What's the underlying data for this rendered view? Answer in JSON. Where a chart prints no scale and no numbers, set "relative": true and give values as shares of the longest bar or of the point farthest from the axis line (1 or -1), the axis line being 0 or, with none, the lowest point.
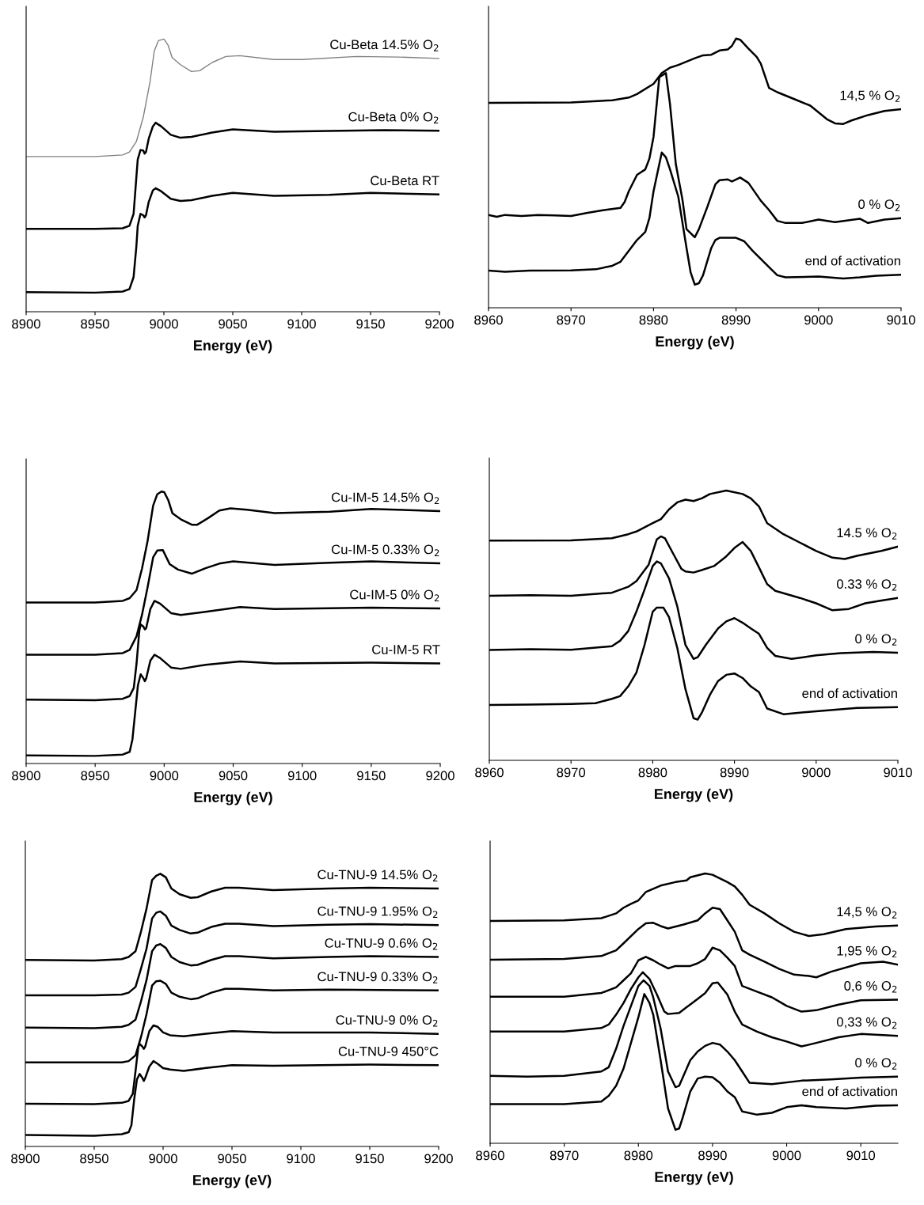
{
  "chart_data": [
    {
      "type": "line",
      "relative": true,
      "xlabel": "Energy (eV)",
      "xlim": [
        8900,
        9200
      ],
      "xticks": [
        8900,
        8950,
        9000,
        9050,
        9100,
        9150,
        9200
      ],
      "legend": false,
      "series": [
        {
          "name": "Cu-Beta 14.5% O$_{2}$",
          "color": "#808080",
          "x": [
            8900,
            8950,
            8970,
            8975,
            8980,
            8985,
            8990,
            8993,
            8996,
            9000,
            9003,
            9006,
            9012,
            9020,
            9026,
            9035,
            9045,
            9055,
            9080,
            9100,
            9140,
            9170,
            9200
          ],
          "values": [
            0.569,
            0.569,
            0.575,
            0.586,
            0.624,
            0.713,
            0.845,
            0.956,
            0.994,
            1.0,
            0.978,
            0.932,
            0.906,
            0.881,
            0.884,
            0.914,
            0.936,
            0.939,
            0.925,
            0.925,
            0.936,
            0.934,
            0.929
          ]
        },
        {
          "name": "Cu-Beta 0% O$_{2}$",
          "color": "#000000",
          "x": [
            8900,
            8950,
            8970,
            8975,
            8978,
            8980,
            8981,
            8983,
            8985,
            8986,
            8987,
            8989,
            8992,
            8994,
            8998,
            9005,
            9012,
            9020,
            9035,
            9050,
            9060,
            9080,
            9120,
            9160,
            9200
          ],
          "values": [
            0.304,
            0.304,
            0.306,
            0.315,
            0.359,
            0.492,
            0.558,
            0.593,
            0.591,
            0.58,
            0.586,
            0.635,
            0.68,
            0.693,
            0.68,
            0.649,
            0.638,
            0.641,
            0.657,
            0.669,
            0.666,
            0.66,
            0.663,
            0.666,
            0.664
          ]
        },
        {
          "name": "Cu-Beta RT",
          "color": "#000000",
          "x": [
            8900,
            8950,
            8970,
            8975,
            8978,
            8980,
            8981,
            8983,
            8985,
            8986,
            8987,
            8989,
            8992,
            8994,
            8998,
            9005,
            9012,
            9020,
            9035,
            9050,
            9080,
            9120,
            9150,
            9200
          ],
          "values": [
            0.072,
            0.07,
            0.074,
            0.083,
            0.127,
            0.238,
            0.315,
            0.359,
            0.354,
            0.346,
            0.354,
            0.403,
            0.445,
            0.453,
            0.442,
            0.414,
            0.406,
            0.409,
            0.425,
            0.436,
            0.425,
            0.429,
            0.436,
            0.43
          ]
        }
      ]
    },
    {
      "type": "line",
      "relative": true,
      "xlabel": "Energy (eV)",
      "xlim": [
        8960,
        9010
      ],
      "xticks": [
        8960,
        8970,
        8980,
        8990,
        9000,
        9010
      ],
      "legend": false,
      "series": [
        {
          "name": "14,5 % O$_{2}$",
          "color": "#000000",
          "x": [
            8960,
            8970,
            8975,
            8977,
            8978,
            8980,
            8981,
            8982,
            8983,
            8985,
            8986,
            8987,
            8988,
            8989,
            8989.5,
            8990,
            8990.5,
            8991.5,
            8992.5,
            8993,
            8994,
            8995,
            8997,
            8999,
            9000,
            9001,
            9002,
            9003,
            9004,
            9006,
            9008,
            9010
          ],
          "values": [
            0.761,
            0.763,
            0.771,
            0.781,
            0.794,
            0.832,
            0.872,
            0.892,
            0.902,
            0.927,
            0.938,
            0.94,
            0.956,
            0.96,
            0.973,
            1.0,
            0.996,
            0.963,
            0.932,
            0.907,
            0.817,
            0.801,
            0.776,
            0.751,
            0.726,
            0.701,
            0.685,
            0.683,
            0.696,
            0.716,
            0.731,
            0.738
          ]
        },
        {
          "name": "0 % O$_{2}$",
          "color": "#000000",
          "x": [
            8960,
            8961,
            8962,
            8964,
            8966,
            8968,
            8970,
            8972,
            8974,
            8976,
            8976.5,
            8977,
            8978,
            8979,
            8979.5,
            8980,
            8980.7,
            8981.5,
            8982,
            8982.7,
            8983.5,
            8984,
            8985,
            8985.5,
            8986.5,
            8987.5,
            8988,
            8989,
            8989.5,
            8990.5,
            8991.5,
            8993,
            8994,
            8995,
            8996,
            8998,
            9000,
            9002,
            9005,
            9006,
            9008,
            9010
          ],
          "values": [
            0.345,
            0.338,
            0.345,
            0.341,
            0.345,
            0.343,
            0.341,
            0.353,
            0.363,
            0.371,
            0.393,
            0.433,
            0.494,
            0.514,
            0.554,
            0.635,
            0.857,
            0.872,
            0.756,
            0.534,
            0.403,
            0.292,
            0.262,
            0.292,
            0.373,
            0.459,
            0.474,
            0.477,
            0.469,
            0.484,
            0.464,
            0.398,
            0.363,
            0.323,
            0.315,
            0.315,
            0.328,
            0.318,
            0.331,
            0.315,
            0.328,
            0.333
          ]
        },
        {
          "name": "end of activation",
          "color": "#000000",
          "x": [
            8960,
            8962,
            8965,
            8970,
            8973,
            8975,
            8976,
            8977,
            8978,
            8979,
            8979.5,
            8980,
            8981,
            8981.5,
            8982,
            8983,
            8984,
            8984.5,
            8985,
            8985.5,
            8986,
            8987,
            8987.5,
            8988,
            8990,
            8991,
            8992,
            8994,
            8995,
            8996,
            9000,
            9003,
            9005,
            9007,
            9010
          ],
          "values": [
            0.138,
            0.134,
            0.138,
            0.139,
            0.143,
            0.156,
            0.171,
            0.212,
            0.252,
            0.282,
            0.333,
            0.433,
            0.577,
            0.559,
            0.514,
            0.413,
            0.222,
            0.131,
            0.086,
            0.091,
            0.121,
            0.222,
            0.252,
            0.26,
            0.26,
            0.247,
            0.212,
            0.151,
            0.121,
            0.113,
            0.116,
            0.109,
            0.113,
            0.119,
            0.123
          ]
        }
      ]
    },
    {
      "type": "line",
      "relative": true,
      "xlabel": "Energy (eV)",
      "xlim": [
        8900,
        9200
      ],
      "xticks": [
        8900,
        8950,
        9000,
        9050,
        9100,
        9150,
        9200
      ],
      "legend": false,
      "series": [
        {
          "name": "Cu-IM-5 14.5% O$_{2}$",
          "color": "#000000",
          "x": [
            8900,
            8950,
            8970,
            8975,
            8980,
            8984,
            8988,
            8992,
            8995,
            8998,
            9000,
            9003,
            9006,
            9012,
            9020,
            9024,
            9032,
            9040,
            9048,
            9060,
            9080,
            9120,
            9150,
            9200
          ],
          "values": [
            0.592,
            0.592,
            0.598,
            0.608,
            0.638,
            0.718,
            0.818,
            0.948,
            0.99,
            1.0,
            0.998,
            0.968,
            0.92,
            0.898,
            0.878,
            0.878,
            0.903,
            0.93,
            0.938,
            0.933,
            0.921,
            0.926,
            0.936,
            0.928
          ]
        },
        {
          "name": "Cu-IM-5 0.33% O$_{2}$",
          "color": "#000000",
          "x": [
            8900,
            8950,
            8970,
            8975,
            8980,
            8984,
            8988,
            8992,
            8995,
            8999,
            9004,
            9010,
            9020,
            9030,
            9040,
            9050,
            9080,
            9120,
            9150,
            9200
          ],
          "values": [
            0.4,
            0.4,
            0.406,
            0.418,
            0.468,
            0.548,
            0.648,
            0.758,
            0.783,
            0.785,
            0.733,
            0.713,
            0.698,
            0.718,
            0.735,
            0.743,
            0.73,
            0.738,
            0.743,
            0.736
          ]
        },
        {
          "name": "Cu-IM-5 0% O$_{2}$",
          "color": "#000000",
          "x": [
            8900,
            8950,
            8970,
            8975,
            8978,
            8980,
            8982,
            8983,
            8985,
            8986,
            8987,
            8990,
            8993,
            8997,
            9005,
            9012,
            9030,
            9055,
            9080,
            9150,
            9200
          ],
          "values": [
            0.235,
            0.233,
            0.238,
            0.248,
            0.278,
            0.368,
            0.488,
            0.511,
            0.503,
            0.493,
            0.498,
            0.568,
            0.598,
            0.588,
            0.553,
            0.546,
            0.558,
            0.575,
            0.568,
            0.573,
            0.57
          ]
        },
        {
          "name": "Cu-IM-5 RT",
          "color": "#000000",
          "x": [
            8900,
            8950,
            8970,
            8975,
            8977,
            8979,
            8981,
            8983,
            8985,
            8986,
            8987,
            8990,
            8993,
            8997,
            9005,
            9012,
            9030,
            9055,
            9080,
            9150,
            9200
          ],
          "values": [
            0.03,
            0.028,
            0.033,
            0.043,
            0.088,
            0.188,
            0.288,
            0.328,
            0.313,
            0.303,
            0.313,
            0.378,
            0.4,
            0.388,
            0.353,
            0.348,
            0.363,
            0.375,
            0.368,
            0.371,
            0.368
          ]
        }
      ]
    },
    {
      "type": "line",
      "relative": true,
      "xlabel": "Energy (eV)",
      "xlim": [
        8960,
        9010
      ],
      "xticks": [
        8960,
        8970,
        8980,
        8990,
        9000,
        9010
      ],
      "legend": false,
      "series": [
        {
          "name": "14.5 % O$_{2}$",
          "color": "#000000",
          "x": [
            8960,
            8970,
            8975,
            8977,
            8978,
            8980,
            8981,
            8982,
            8983,
            8984,
            8985,
            8986,
            8987,
            8989,
            8991,
            8992,
            8993,
            8994,
            8996,
            8998,
            9000,
            9002,
            9003.5,
            9005,
            9008,
            9010
          ],
          "values": [
            0.814,
            0.815,
            0.823,
            0.838,
            0.848,
            0.879,
            0.894,
            0.93,
            0.956,
            0.966,
            0.961,
            0.971,
            0.987,
            1.0,
            0.987,
            0.971,
            0.941,
            0.879,
            0.838,
            0.807,
            0.776,
            0.751,
            0.746,
            0.758,
            0.776,
            0.792
          ]
        },
        {
          "name": "0.33 % O$_{2}$",
          "color": "#000000",
          "x": [
            8960,
            8965,
            8970,
            8975,
            8977,
            8978,
            8979.5,
            8980.5,
            8981,
            8981.5,
            8982.5,
            8983.5,
            8984,
            8985,
            8986,
            8987.5,
            8989,
            8990,
            8991,
            8992,
            8993,
            8994,
            8995,
            8998,
            9000,
            9002,
            9004,
            9006,
            9008,
            9010
          ],
          "values": [
            0.61,
            0.612,
            0.61,
            0.621,
            0.643,
            0.664,
            0.725,
            0.819,
            0.83,
            0.823,
            0.766,
            0.71,
            0.7,
            0.696,
            0.705,
            0.72,
            0.756,
            0.787,
            0.809,
            0.776,
            0.715,
            0.653,
            0.628,
            0.602,
            0.582,
            0.556,
            0.561,
            0.582,
            0.592,
            0.602
          ]
        },
        {
          "name": "0 % O$_{2}$",
          "color": "#000000",
          "x": [
            8960,
            8965,
            8970,
            8975,
            8976,
            8977,
            8978,
            8979,
            8980,
            8980.5,
            8981,
            8982,
            8983,
            8984,
            8985,
            8985.5,
            8986.5,
            8988,
            8989,
            8990,
            8991,
            8992,
            8993,
            8994,
            8995,
            8997,
            9000,
            9003,
            9007,
            9010
          ],
          "values": [
            0.409,
            0.412,
            0.41,
            0.423,
            0.443,
            0.479,
            0.551,
            0.633,
            0.72,
            0.737,
            0.73,
            0.674,
            0.571,
            0.428,
            0.376,
            0.382,
            0.428,
            0.489,
            0.515,
            0.527,
            0.51,
            0.489,
            0.469,
            0.417,
            0.387,
            0.376,
            0.389,
            0.397,
            0.402,
            0.399
          ]
        },
        {
          "name": "end of activation",
          "color": "#000000",
          "x": [
            8960,
            8965,
            8970,
            8973,
            8975,
            8976,
            8977,
            8978,
            8979,
            8980,
            8980.5,
            8981.3,
            8982,
            8983,
            8984,
            8985,
            8985.5,
            8986,
            8987,
            8988,
            8989,
            8990,
            8991,
            8992,
            8993,
            8994,
            8996,
            9000,
            9005,
            9010
          ],
          "values": [
            0.205,
            0.207,
            0.209,
            0.212,
            0.228,
            0.238,
            0.274,
            0.325,
            0.428,
            0.551,
            0.566,
            0.566,
            0.53,
            0.417,
            0.264,
            0.156,
            0.151,
            0.176,
            0.243,
            0.294,
            0.317,
            0.322,
            0.305,
            0.274,
            0.253,
            0.192,
            0.171,
            0.182,
            0.194,
            0.197
          ]
        }
      ]
    },
    {
      "type": "line",
      "relative": true,
      "xlabel": "Energy (eV)",
      "xlim": [
        8900,
        9200
      ],
      "xticks": [
        8900,
        8950,
        9000,
        9050,
        9100,
        9150,
        9200
      ],
      "legend": false,
      "series": [
        {
          "name": "Cu-TNU-9 14.5% O$_{2}$",
          "color": "#000000",
          "x": [
            8900,
            8950,
            8970,
            8975,
            8980,
            8984,
            8988,
            8992,
            8995,
            8998,
            9002,
            9006,
            9012,
            9020,
            9025,
            9035,
            9045,
            9055,
            9080,
            9120,
            9150,
            9200
          ],
          "values": [
            0.684,
            0.682,
            0.687,
            0.695,
            0.716,
            0.789,
            0.873,
            0.977,
            0.993,
            1.0,
            0.987,
            0.946,
            0.925,
            0.912,
            0.914,
            0.935,
            0.949,
            0.949,
            0.94,
            0.946,
            0.949,
            0.946
          ]
        },
        {
          "name": "Cu-TNU-9 1.95% O$_{2}$",
          "color": "#000000",
          "x": [
            8900,
            8950,
            8970,
            8975,
            8980,
            8984,
            8988,
            8992,
            8995,
            8998,
            9002,
            9006,
            9012,
            9020,
            9025,
            9035,
            9045,
            9055,
            9080,
            9120,
            9150,
            9200
          ],
          "values": [
            0.554,
            0.554,
            0.557,
            0.564,
            0.585,
            0.653,
            0.726,
            0.836,
            0.857,
            0.862,
            0.846,
            0.81,
            0.794,
            0.781,
            0.784,
            0.805,
            0.817,
            0.817,
            0.808,
            0.813,
            0.815,
            0.812
          ]
        },
        {
          "name": "Cu-TNU-9 0.6% O$_{2}$",
          "color": "#000000",
          "x": [
            8900,
            8950,
            8970,
            8975,
            8980,
            8984,
            8988,
            8992,
            8995,
            8998,
            9002,
            9006,
            9012,
            9020,
            9025,
            9035,
            9045,
            9055,
            9080,
            9120,
            9150,
            9200
          ],
          "values": [
            0.436,
            0.434,
            0.439,
            0.446,
            0.465,
            0.533,
            0.611,
            0.716,
            0.737,
            0.742,
            0.728,
            0.695,
            0.676,
            0.664,
            0.666,
            0.684,
            0.698,
            0.698,
            0.69,
            0.695,
            0.698,
            0.695
          ]
        },
        {
          "name": "Cu-TNU-9 0.33% O$_{2}$",
          "color": "#000000",
          "x": [
            8900,
            8950,
            8970,
            8975,
            8980,
            8984,
            8988,
            8992,
            8995,
            8998,
            9002,
            9006,
            9012,
            9020,
            9025,
            9035,
            9045,
            9055,
            9080,
            9120,
            9200
          ],
          "values": [
            0.308,
            0.308,
            0.308,
            0.313,
            0.334,
            0.402,
            0.486,
            0.59,
            0.606,
            0.608,
            0.596,
            0.564,
            0.549,
            0.54,
            0.543,
            0.564,
            0.578,
            0.578,
            0.572,
            0.575,
            0.572
          ]
        },
        {
          "name": "Cu-TNU-9 0% O$_{2}$",
          "color": "#000000",
          "x": [
            8900,
            8950,
            8970,
            8975,
            8978,
            8980,
            8982,
            8983,
            8985,
            8986,
            8987,
            8990,
            8993,
            8996,
            9000,
            9005,
            9015,
            9030,
            9050,
            9080,
            9150,
            9200
          ],
          "values": [
            0.157,
            0.155,
            0.16,
            0.167,
            0.193,
            0.277,
            0.366,
            0.376,
            0.366,
            0.358,
            0.366,
            0.423,
            0.444,
            0.439,
            0.418,
            0.408,
            0.404,
            0.413,
            0.423,
            0.418,
            0.418,
            0.413
          ]
        },
        {
          "name": "Cu-TNU-9 450°C",
          "color": "#000000",
          "x": [
            8900,
            8950,
            8970,
            8975,
            8977,
            8979,
            8981,
            8983,
            8985,
            8986,
            8987,
            8990,
            8993,
            8996,
            9000,
            9005,
            9015,
            9030,
            9050,
            9080,
            9150,
            9200
          ],
          "values": [
            0.042,
            0.039,
            0.045,
            0.052,
            0.078,
            0.172,
            0.246,
            0.266,
            0.251,
            0.24,
            0.251,
            0.293,
            0.313,
            0.303,
            0.287,
            0.282,
            0.277,
            0.287,
            0.298,
            0.296,
            0.3,
            0.298
          ]
        }
      ]
    },
    {
      "type": "line",
      "relative": true,
      "xlabel": "Energy (eV)",
      "xlim": [
        8960,
        9015
      ],
      "xticks": [
        8960,
        8970,
        8980,
        8990,
        9000,
        9010
      ],
      "legend": false,
      "series": [
        {
          "name": "14,5 % O$_{2}$",
          "color": "#000000",
          "x": [
            8960,
            8970,
            8975,
            8977,
            8978,
            8979,
            8980,
            8981,
            8983,
            8985,
            8986.5,
            8987,
            8989,
            8990,
            8992,
            8993,
            8994,
            8995,
            8997,
            8999,
            9001,
            9003,
            9005,
            9008,
            9012,
            9015
          ],
          "values": [
            0.824,
            0.826,
            0.834,
            0.852,
            0.873,
            0.887,
            0.9,
            0.931,
            0.955,
            0.968,
            0.974,
            0.986,
            1.0,
            0.995,
            0.968,
            0.952,
            0.921,
            0.884,
            0.852,
            0.815,
            0.784,
            0.768,
            0.775,
            0.794,
            0.803,
            0.807
          ]
        },
        {
          "name": "1,95 % O$_{2}$",
          "color": "#000000",
          "x": [
            8960,
            8970,
            8975,
            8977,
            8978,
            8980,
            8981,
            8982,
            8983,
            8984,
            8986,
            8988,
            8989,
            8990,
            8991,
            8992,
            8993,
            8994,
            8995,
            8997,
            8999,
            9001,
            9003,
            9004,
            9006,
            9010,
            9013,
            9015
          ],
          "values": [
            0.68,
            0.683,
            0.694,
            0.715,
            0.741,
            0.794,
            0.815,
            0.817,
            0.805,
            0.796,
            0.81,
            0.826,
            0.852,
            0.873,
            0.868,
            0.826,
            0.784,
            0.715,
            0.699,
            0.673,
            0.646,
            0.625,
            0.62,
            0.615,
            0.636,
            0.667,
            0.673,
            0.662
          ]
        },
        {
          "name": "0,6 % O$_{2}$",
          "color": "#000000",
          "x": [
            8960,
            8970,
            8975,
            8977,
            8978,
            8979,
            8980,
            8981,
            8982,
            8983,
            8984,
            8985,
            8987,
            8988,
            8989,
            8990,
            8991,
            8992,
            8993,
            8994,
            8996,
            8998,
            8999,
            9000,
            9002,
            9004,
            9007,
            9010,
            9015
          ],
          "values": [
            0.543,
            0.543,
            0.557,
            0.578,
            0.604,
            0.63,
            0.678,
            0.691,
            0.678,
            0.662,
            0.648,
            0.657,
            0.657,
            0.667,
            0.683,
            0.725,
            0.715,
            0.688,
            0.657,
            0.583,
            0.562,
            0.541,
            0.525,
            0.509,
            0.488,
            0.493,
            0.514,
            0.53,
            0.532
          ]
        },
        {
          "name": "0,33 % O$_{2}$",
          "color": "#000000",
          "x": [
            8960,
            8970,
            8975,
            8976,
            8977,
            8978,
            8979,
            8980,
            8980.6,
            8981.5,
            8982.5,
            8983.5,
            8984,
            8985.5,
            8986.5,
            8988,
            8989,
            8990,
            8990.7,
            8992,
            8993,
            8994,
            8996,
            8998,
            9000,
            9002,
            9004,
            9007,
            9010,
            9015
          ],
          "values": [
            0.414,
            0.414,
            0.427,
            0.44,
            0.477,
            0.52,
            0.572,
            0.615,
            0.634,
            0.609,
            0.551,
            0.488,
            0.479,
            0.483,
            0.504,
            0.535,
            0.556,
            0.593,
            0.596,
            0.551,
            0.488,
            0.44,
            0.414,
            0.393,
            0.377,
            0.359,
            0.372,
            0.393,
            0.405,
            0.398
          ]
        },
        {
          "name": "0 % O$_{2}$",
          "color": "#000000",
          "x": [
            8960,
            8965,
            8970,
            8975,
            8976,
            8977,
            8978,
            8979,
            8980,
            8980.7,
            8981.5,
            8982,
            8983,
            8984,
            8985,
            8985.5,
            8986,
            8987,
            8988,
            8989,
            8990,
            8991,
            8992,
            8993,
            8994,
            8995,
            8998,
            9002,
            9006,
            9010,
            9015
          ],
          "values": [
            0.25,
            0.247,
            0.25,
            0.266,
            0.282,
            0.351,
            0.435,
            0.509,
            0.583,
            0.604,
            0.583,
            0.541,
            0.425,
            0.266,
            0.208,
            0.213,
            0.245,
            0.308,
            0.34,
            0.361,
            0.372,
            0.366,
            0.34,
            0.308,
            0.266,
            0.224,
            0.219,
            0.232,
            0.237,
            0.243,
            0.247
          ]
        },
        {
          "name": "end of activation",
          "color": "#000000",
          "x": [
            8960,
            8970,
            8975,
            8976,
            8977,
            8978,
            8979,
            8980,
            8980.8,
            8981.5,
            8982,
            8983,
            8984,
            8985,
            8985.5,
            8986,
            8987,
            8988,
            8989,
            8990,
            8991,
            8992,
            8993,
            8994,
            8996,
            8998,
            9000,
            9002,
            9004,
            9008,
            9012,
            9015
          ],
          "values": [
            0.145,
            0.145,
            0.155,
            0.176,
            0.213,
            0.277,
            0.372,
            0.467,
            0.553,
            0.52,
            0.477,
            0.308,
            0.129,
            0.05,
            0.055,
            0.097,
            0.192,
            0.24,
            0.247,
            0.245,
            0.224,
            0.192,
            0.171,
            0.118,
            0.106,
            0.113,
            0.134,
            0.141,
            0.134,
            0.129,
            0.139,
            0.141
          ]
        }
      ]
    }
  ]
}
